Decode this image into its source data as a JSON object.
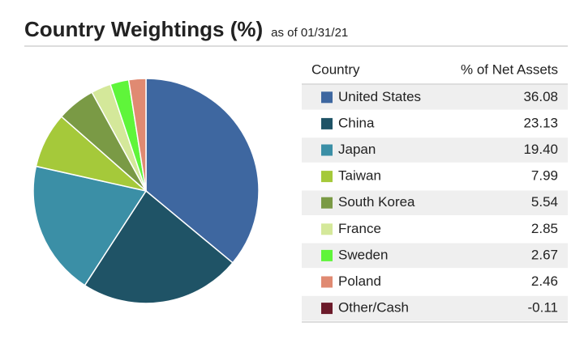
{
  "chart_data": {
    "type": "pie",
    "title": "Country Weightings (%)",
    "subtitle": "as of 01/31/21",
    "table_headers": [
      "Country",
      "% of Net Assets"
    ],
    "categories": [
      "United States",
      "China",
      "Japan",
      "Taiwan",
      "South Korea",
      "France",
      "Sweden",
      "Poland",
      "Other/Cash"
    ],
    "values": [
      36.08,
      23.13,
      19.4,
      7.99,
      5.54,
      2.85,
      2.67,
      2.46,
      -0.11
    ],
    "value_labels": [
      "36.08",
      "23.13",
      "19.40",
      "7.99",
      "5.54",
      "2.85",
      "2.67",
      "2.46",
      "-0.11"
    ],
    "colors": [
      "#3e67a0",
      "#1f5366",
      "#3b8fa6",
      "#a5c93a",
      "#7a9a45",
      "#d4e89a",
      "#5ff53a",
      "#e08a72",
      "#6b1a2a"
    ]
  }
}
